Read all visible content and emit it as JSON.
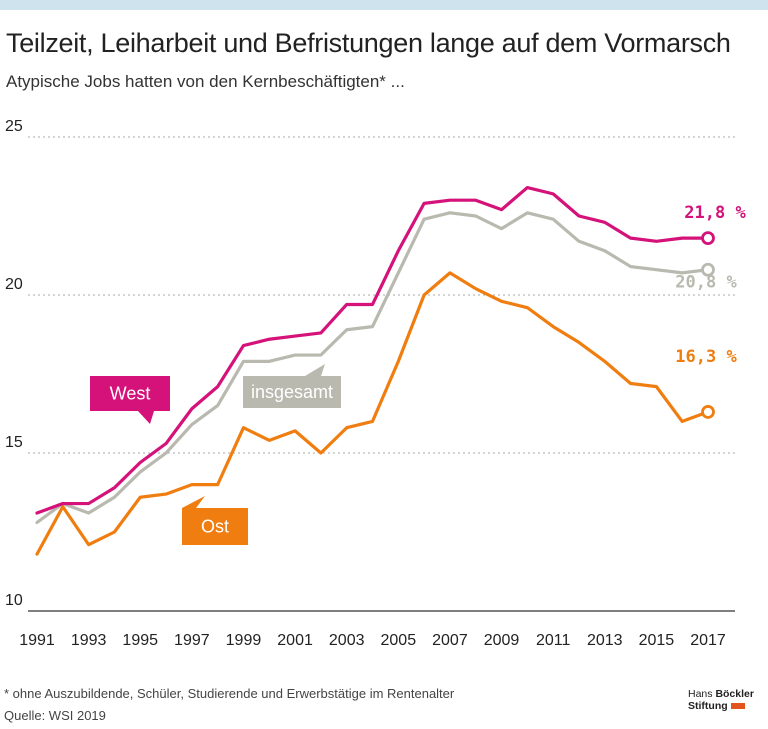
{
  "title": "Teilzeit, Leiharbeit und Befristungen lange auf dem Vormarsch",
  "subtitle": "Atypische Jobs hatten von den Kernbeschäftigten* ...",
  "footnote": "* ohne Auszubildende, Schüler, Studierende und Erwerbstätige im Rentenalter",
  "source": "Quelle: WSI 2019",
  "logo": {
    "line1_a": "Hans",
    "line1_b": "Böckler",
    "line2": "Stiftung"
  },
  "chart_data": {
    "type": "line",
    "x": [
      1991,
      1992,
      1993,
      1994,
      1995,
      1996,
      1997,
      1998,
      1999,
      2000,
      2001,
      2002,
      2003,
      2004,
      2005,
      2006,
      2007,
      2008,
      2009,
      2010,
      2011,
      2012,
      2013,
      2014,
      2015,
      2016,
      2017
    ],
    "xticks": [
      1991,
      1993,
      1995,
      1997,
      1999,
      2001,
      2003,
      2005,
      2007,
      2009,
      2011,
      2013,
      2015,
      2017
    ],
    "yticks": [
      10,
      15,
      20,
      25
    ],
    "ylim": [
      10,
      25
    ],
    "xlim": [
      1991,
      2017
    ],
    "grid": true,
    "series": [
      {
        "name": "West",
        "color": "#d4127a",
        "values": [
          13.1,
          13.4,
          13.4,
          13.9,
          14.7,
          15.3,
          16.4,
          17.1,
          18.4,
          18.6,
          18.7,
          18.8,
          19.7,
          19.7,
          21.4,
          22.9,
          23.0,
          23.0,
          22.7,
          23.4,
          23.2,
          22.5,
          22.3,
          21.8,
          21.7,
          21.8,
          21.8
        ],
        "end_label": "21,8 %"
      },
      {
        "name": "insgesamt",
        "color": "#b9b9b0",
        "values": [
          12.8,
          13.4,
          13.1,
          13.6,
          14.4,
          15.0,
          15.9,
          16.5,
          17.9,
          17.9,
          18.1,
          18.1,
          18.9,
          19.0,
          20.7,
          22.4,
          22.6,
          22.5,
          22.1,
          22.6,
          22.4,
          21.7,
          21.4,
          20.9,
          20.8,
          20.7,
          20.8
        ],
        "end_label": "20,8 %"
      },
      {
        "name": "Ost",
        "color": "#f07d0f",
        "values": [
          11.8,
          13.3,
          12.1,
          12.5,
          13.6,
          13.7,
          14.0,
          14.0,
          15.8,
          15.4,
          15.7,
          15.0,
          15.8,
          16.0,
          17.9,
          20.0,
          20.7,
          20.2,
          19.8,
          19.6,
          19.0,
          18.5,
          17.9,
          17.2,
          17.1,
          16.0,
          16.3
        ],
        "end_label": "16,3 %"
      }
    ]
  }
}
